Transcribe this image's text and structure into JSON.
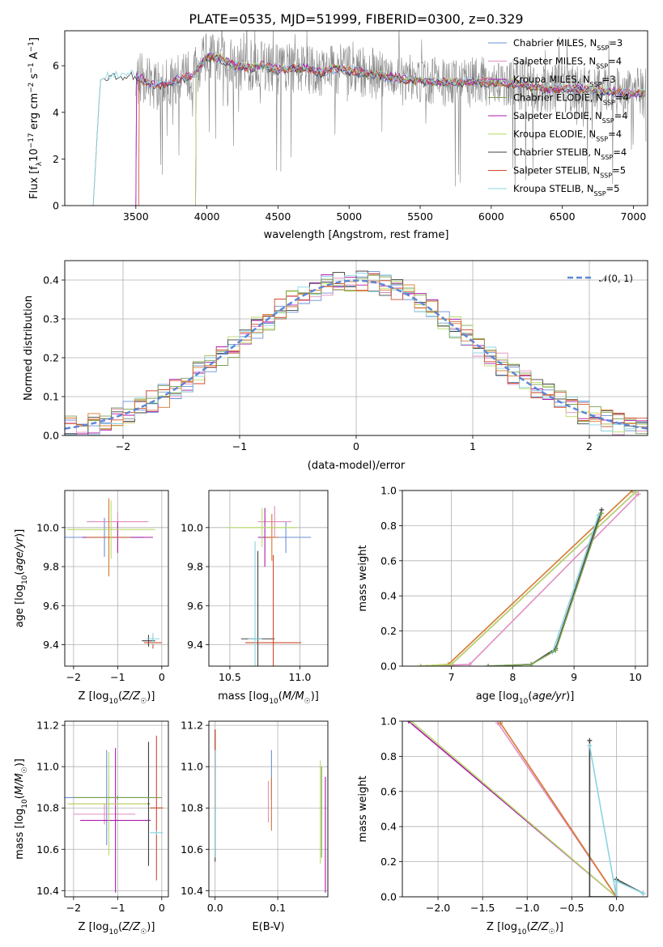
{
  "figure": {
    "title": "PLATE=0535, MJD=51999, FIBERID=0300, z=0.329"
  },
  "colors": [
    "#6a8fd8",
    "#e08ec0",
    "#ad1aac",
    "#7fa04e",
    "#404040",
    "#cf4a2a",
    "#d47a30",
    "#b8dc6a",
    "#8ad4e0"
  ],
  "chart_data": [
    {
      "id": "spectrum",
      "type": "line",
      "xlabel": "wavelength [Angstrom, rest frame]",
      "ylabel": "Flux [f_λ 10^-17 erg cm^-2 s^-1 A^-1]",
      "xlim": [
        3000,
        7100
      ],
      "ylim": [
        0,
        7.5
      ],
      "xticks": [
        3500,
        4000,
        4500,
        5000,
        5500,
        6000,
        6500,
        7000
      ],
      "yticks": [
        0,
        2,
        4,
        6
      ],
      "grid": false,
      "legend_position": "top-right",
      "data_envelope": {
        "x": [
          3200,
          3250,
          3300,
          3400,
          3500,
          3600,
          3700,
          3800,
          3900,
          4000,
          4100,
          4200,
          4300,
          4400,
          4500,
          4600,
          4700,
          4800,
          4900,
          5000,
          5200,
          5400,
          5600,
          5800,
          6000,
          6200,
          6400,
          6600,
          6800,
          7000
        ],
        "y": [
          0.0,
          5.4,
          5.5,
          5.6,
          5.6,
          5.2,
          5.2,
          5.4,
          5.6,
          6.4,
          6.3,
          6.0,
          5.9,
          6.0,
          5.8,
          5.9,
          5.9,
          5.7,
          5.9,
          5.8,
          5.6,
          5.4,
          5.3,
          5.3,
          5.3,
          5.2,
          5.0,
          5.0,
          4.9,
          4.8
        ]
      },
      "series": [
        {
          "name": "Chabrier MILES, N_SSP=3",
          "color": "#6a8fd8",
          "start": 3500
        },
        {
          "name": "Salpeter MILES, N_SSP=4",
          "color": "#e08ec0",
          "start": 3500
        },
        {
          "name": "Kroupa MILES, N_SSP=3",
          "color": "#ad1aac",
          "start": 3500
        },
        {
          "name": "Chabrier ELODIE, N_SSP=4",
          "color": "#7fa04e",
          "start": 3920
        },
        {
          "name": "Salpeter ELODIE, N_SSP=4",
          "color": "#ad1aac",
          "start": 3920
        },
        {
          "name": "Kroupa ELODIE, N_SSP=4",
          "color": "#b8dc6a",
          "start": 3920
        },
        {
          "name": "Chabrier STELIB, N_SSP=4",
          "color": "#404040",
          "start": 3200
        },
        {
          "name": "Salpeter STELIB, N_SSP=5",
          "color": "#cf4a2a",
          "start": 3520
        },
        {
          "name": "Kroupa STELIB, N_SSP=5",
          "color": "#8ad4e0",
          "start": 3200
        }
      ]
    },
    {
      "id": "residuals",
      "type": "line",
      "xlabel": "(data-model)/error",
      "ylabel": "Normed distribution",
      "xlim": [
        -2.5,
        2.5
      ],
      "ylim": [
        0,
        0.45
      ],
      "xticks": [
        -2,
        -1,
        0,
        1,
        2
      ],
      "yticks": [
        0.0,
        0.1,
        0.2,
        0.3,
        0.4
      ],
      "grid": true,
      "legend_position": "top-right",
      "legend": "𝒩(0, 1)",
      "gaussian": {
        "mean": 0,
        "sigma": 1,
        "color": "#5b88d6"
      },
      "hist_series_colors": [
        "#6a8fd8",
        "#e08ec0",
        "#ad1aac",
        "#b8dc6a",
        "#404040",
        "#cf4a2a",
        "#8ad4e0",
        "#7fa04e",
        "#d47a30"
      ]
    },
    {
      "id": "age_vs_Z",
      "type": "scatter",
      "xlabel": "Z [log10(Z/Z☉)]",
      "ylabel": "age  [log10(age/yr)]",
      "xlim": [
        -2.2,
        0.15
      ],
      "ylim": [
        9.29,
        10.19
      ],
      "xticks": [
        -2,
        -1,
        0
      ],
      "yticks": [
        9.4,
        9.6,
        9.8,
        10.0
      ],
      "grid": true,
      "points": [
        {
          "x": -1.3,
          "y": 9.95,
          "xerr": 0.9,
          "yerr": 0.1,
          "color": "#6a8fd8"
        },
        {
          "x": -1.0,
          "y": 10.03,
          "xerr": 0.7,
          "yerr": 0.05,
          "color": "#e08ec0"
        },
        {
          "x": -1.0,
          "y": 9.95,
          "xerr": 0.8,
          "yerr": 0.08,
          "color": "#ad1aac"
        },
        {
          "x": -1.2,
          "y": 9.95,
          "xerr": 0.5,
          "yerr": 0.2,
          "color": "#d47a30"
        },
        {
          "x": -1.15,
          "y": 9.99,
          "xerr": 1.0,
          "yerr": 0.15,
          "color": "#b8dc6a"
        },
        {
          "x": -0.3,
          "y": 9.42,
          "xerr": 0.15,
          "yerr": 0.03,
          "color": "#404040"
        },
        {
          "x": -0.2,
          "y": 9.41,
          "xerr": 0.2,
          "yerr": 0.03,
          "color": "#cf4a2a"
        },
        {
          "x": -0.2,
          "y": 9.43,
          "xerr": 0.15,
          "yerr": 0.03,
          "color": "#8ad4e0"
        }
      ]
    },
    {
      "id": "age_vs_mass",
      "type": "scatter",
      "xlabel": "mass [log10(M/M☉)]",
      "ylabel": "",
      "xlim": [
        10.35,
        11.2
      ],
      "ylim": [
        9.29,
        10.19
      ],
      "xticks": [
        10.5,
        11.0
      ],
      "yticks": [
        9.4,
        9.6,
        9.8,
        10.0
      ],
      "grid": true,
      "points": [
        {
          "x": 10.9,
          "y": 9.95,
          "xerr": 0.18,
          "yerr": 0.08,
          "color": "#6a8fd8"
        },
        {
          "x": 10.82,
          "y": 10.03,
          "xerr": 0.12,
          "yerr": 0.08,
          "color": "#e08ec0"
        },
        {
          "x": 10.75,
          "y": 9.95,
          "xerr": 0.05,
          "yerr": 0.15,
          "color": "#ad1aac"
        },
        {
          "x": 10.8,
          "y": 9.95,
          "xerr": 0.05,
          "yerr": 0.12,
          "color": "#d47a30"
        },
        {
          "x": 10.73,
          "y": 10.0,
          "xerr": 0.25,
          "yerr": 0.1,
          "color": "#b8dc6a"
        },
        {
          "x": 10.7,
          "y": 9.43,
          "xerr": 0.12,
          "yerr": 0.45,
          "color": "#404040"
        },
        {
          "x": 10.81,
          "y": 9.41,
          "xerr": 0.2,
          "yerr": 0.45,
          "color": "#cf4a2a"
        },
        {
          "x": 10.68,
          "y": 9.43,
          "xerr": 0.05,
          "yerr": 0.5,
          "color": "#8ad4e0"
        }
      ]
    },
    {
      "id": "mass_weight_vs_age",
      "type": "line",
      "xlabel": "age  [log10(age/yr)]",
      "ylabel": "mass weight",
      "xlim": [
        6.2,
        10.2
      ],
      "ylim": [
        0,
        1
      ],
      "xticks": [
        7,
        8,
        9,
        10
      ],
      "yticks": [
        0.0,
        0.2,
        0.4,
        0.6,
        0.8,
        1.0
      ],
      "grid": true,
      "series": [
        {
          "color": "#e08ec0",
          "x": [
            6.5,
            7.3,
            10.05
          ],
          "y": [
            0.0,
            0.01,
            0.98
          ]
        },
        {
          "color": "#ad1aac",
          "x": [
            6.5,
            7.0,
            10.0
          ],
          "y": [
            0.0,
            0.01,
            0.99
          ]
        },
        {
          "color": "#d47a30",
          "x": [
            6.5,
            6.95,
            9.95
          ],
          "y": [
            0.0,
            0.01,
            1.0
          ]
        },
        {
          "color": "#b8dc6a",
          "x": [
            6.5,
            7.0,
            10.0
          ],
          "y": [
            0.0,
            0.01,
            0.99
          ]
        },
        {
          "color": "#404040",
          "x": [
            7.6,
            8.3,
            8.7,
            9.45
          ],
          "y": [
            0.0,
            0.01,
            0.1,
            0.89
          ]
        },
        {
          "color": "#8ad4e0",
          "x": [
            7.6,
            8.3,
            8.65,
            9.4
          ],
          "y": [
            0.0,
            0.01,
            0.08,
            0.86
          ]
        },
        {
          "color": "#7fa04e",
          "x": [
            7.6,
            8.3,
            8.7,
            9.45
          ],
          "y": [
            0.0,
            0.01,
            0.09,
            0.87
          ]
        }
      ]
    },
    {
      "id": "mass_vs_Z",
      "type": "scatter",
      "xlabel": "Z [log10(Z/Z☉)]",
      "ylabel": "mass [log10(M/M☉)]",
      "xlim": [
        -2.2,
        0.15
      ],
      "ylim": [
        10.37,
        11.22
      ],
      "xticks": [
        -2,
        -1,
        0
      ],
      "yticks": [
        10.4,
        10.6,
        10.8,
        11.0,
        11.2
      ],
      "grid": true,
      "points": [
        {
          "x": -1.25,
          "y": 10.85,
          "xerr": 0.95,
          "yerr": 0.23,
          "color": "#6a8fd8"
        },
        {
          "x": -1.3,
          "y": 10.77,
          "xerr": 0.7,
          "yerr": 0.05,
          "color": "#e08ec0"
        },
        {
          "x": -1.05,
          "y": 10.74,
          "xerr": 0.8,
          "yerr": 0.35,
          "color": "#ad1aac"
        },
        {
          "x": -1.2,
          "y": 10.82,
          "xerr": 0.9,
          "yerr": 0.13,
          "color": "#d47a30"
        },
        {
          "x": -1.2,
          "y": 10.82,
          "xerr": 0.95,
          "yerr": 0.25,
          "color": "#b8dc6a"
        },
        {
          "x": -0.3,
          "y": 10.82,
          "xerr": 0.02,
          "yerr": 0.3,
          "color": "#404040"
        },
        {
          "x": -0.12,
          "y": 10.8,
          "xerr": 0.15,
          "yerr": 0.35,
          "color": "#cf4a2a"
        },
        {
          "x": -0.12,
          "y": 10.68,
          "xerr": 0.15,
          "yerr": 0.01,
          "color": "#8ad4e0"
        },
        {
          "x": -1.0,
          "y": 10.85,
          "xerr": 1.0,
          "yerr": 0.01,
          "color": "#7fa04e"
        }
      ]
    },
    {
      "id": "mass_vs_ebv",
      "type": "scatter",
      "xlabel": "E(B-V)",
      "ylabel": "",
      "xlim": [
        -0.01,
        0.18
      ],
      "ylim": [
        10.37,
        11.22
      ],
      "xticks": [
        0.0,
        0.1
      ],
      "yticks": [
        10.4,
        10.6,
        10.8,
        11.0,
        11.2
      ],
      "grid": true,
      "points": [
        {
          "x": 0.09,
          "y": 10.96,
          "yerr": 0.12,
          "color": "#6a8fd8"
        },
        {
          "x": 0.085,
          "y": 10.83,
          "yerr": 0.1,
          "color": "#e08ec0"
        },
        {
          "x": 0.176,
          "y": 10.67,
          "yerr": 0.28,
          "color": "#ad1aac"
        },
        {
          "x": 0.09,
          "y": 10.82,
          "yerr": 0.13,
          "color": "#d47a30"
        },
        {
          "x": 0.168,
          "y": 10.78,
          "yerr": 0.25,
          "color": "#b8dc6a"
        },
        {
          "x": 0.0,
          "y": 10.86,
          "yerr": 0.32,
          "color": "#404040"
        },
        {
          "x": 0.0,
          "y": 10.98,
          "yerr": 0.2,
          "color": "#cf4a2a"
        },
        {
          "x": 0.0,
          "y": 10.82,
          "yerr": 0.26,
          "color": "#8ad4e0"
        },
        {
          "x": 0.17,
          "y": 10.78,
          "yerr": 0.22,
          "color": "#7fa04e"
        }
      ]
    },
    {
      "id": "mass_weight_vs_Z",
      "type": "line",
      "xlabel": "Z [log10(Z/Z☉)]",
      "ylabel": "mass weight",
      "xlim": [
        -2.4,
        0.35
      ],
      "ylim": [
        0,
        1
      ],
      "xticks": [
        -2.0,
        -1.5,
        -1.0,
        -0.5,
        0.0
      ],
      "yticks": [
        0.0,
        0.2,
        0.4,
        0.6,
        0.8,
        1.0
      ],
      "grid": true,
      "series": [
        {
          "color": "#ad1aac",
          "x": [
            -2.33,
            0.0
          ],
          "y": [
            1.0,
            0.0
          ]
        },
        {
          "color": "#b8dc6a",
          "x": [
            -2.3,
            0.0
          ],
          "y": [
            1.0,
            0.0
          ]
        },
        {
          "color": "#e08ec0",
          "x": [
            -1.33,
            0.0
          ],
          "y": [
            0.99,
            0.0
          ]
        },
        {
          "color": "#d47a30",
          "x": [
            -1.3,
            0.0
          ],
          "y": [
            0.99,
            0.0
          ]
        },
        {
          "color": "#404040",
          "x": [
            -0.3,
            -0.3,
            0.0,
            0.0,
            0.3
          ],
          "y": [
            0.89,
            0.0,
            0.0,
            0.1,
            0.02
          ]
        },
        {
          "color": "#8ad4e0",
          "x": [
            -0.3,
            0.0,
            0.0,
            0.3
          ],
          "y": [
            0.86,
            0.0,
            0.09,
            0.02
          ]
        }
      ]
    }
  ]
}
